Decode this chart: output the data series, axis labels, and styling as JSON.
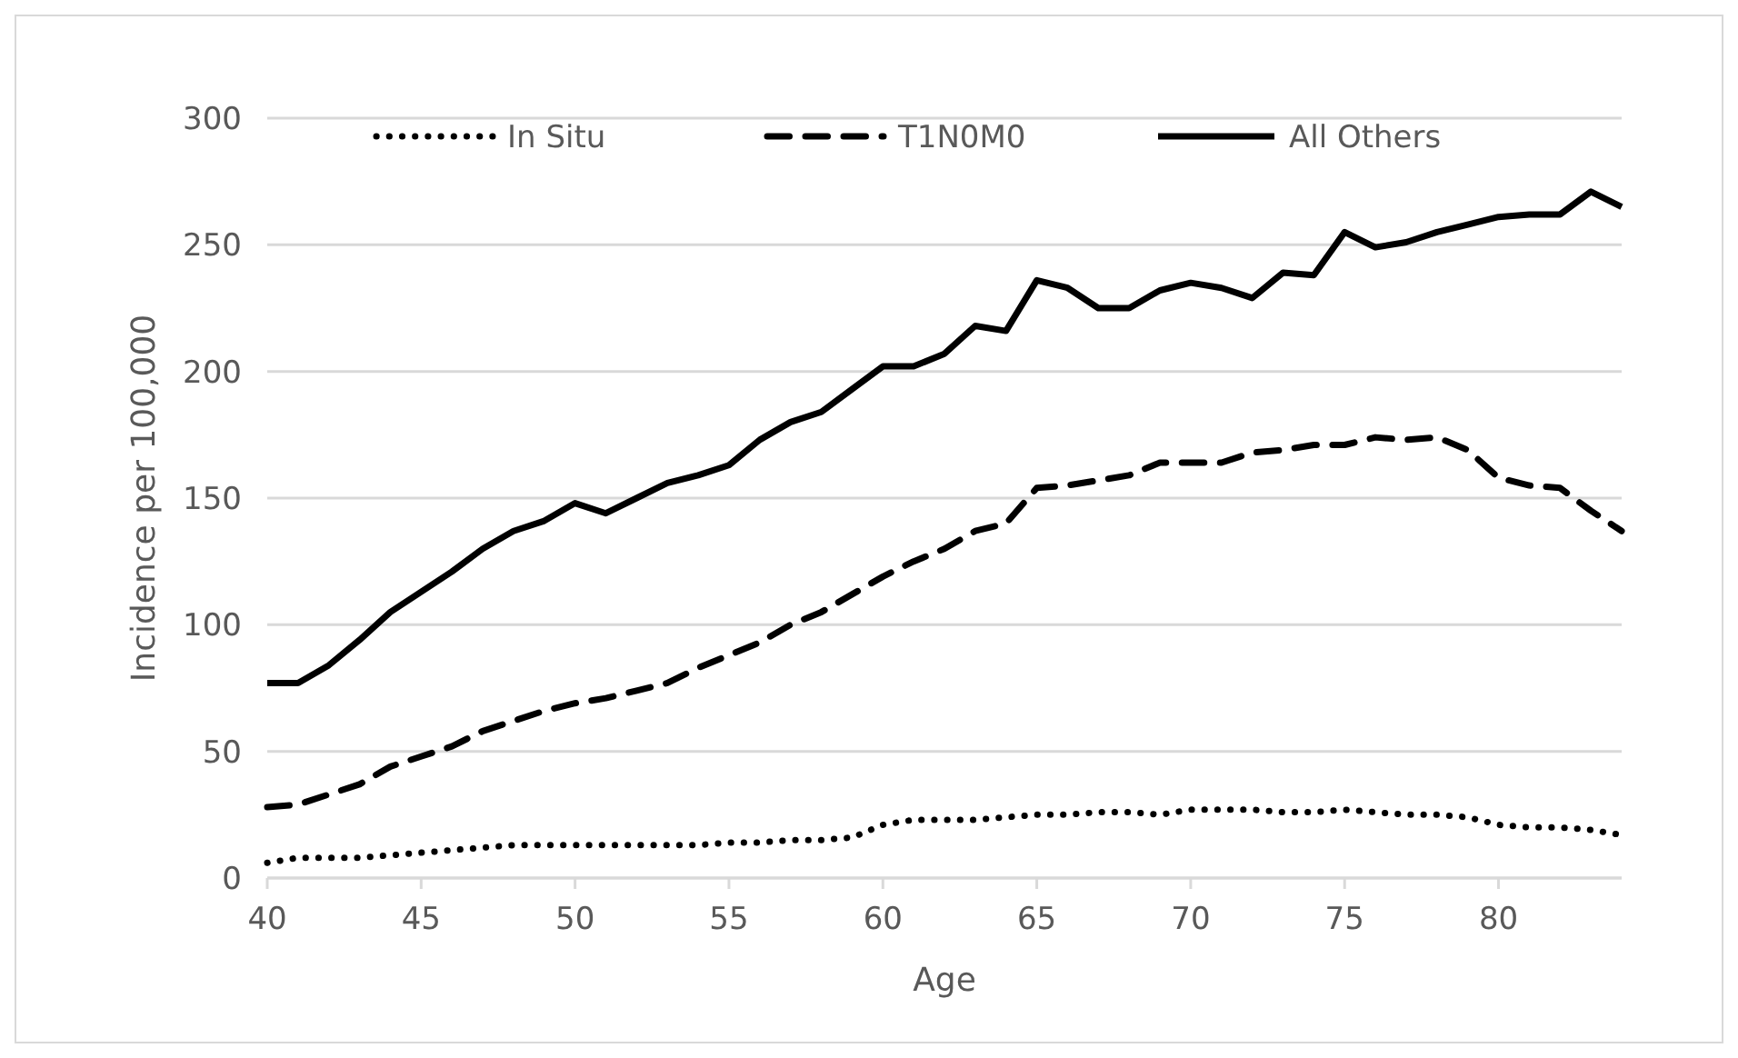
{
  "chart_data": {
    "type": "line",
    "xlabel": "Age",
    "ylabel": "Incidence per 100,000",
    "x": [
      40,
      41,
      42,
      43,
      44,
      45,
      46,
      47,
      48,
      49,
      50,
      51,
      52,
      53,
      54,
      55,
      56,
      57,
      58,
      59,
      60,
      61,
      62,
      63,
      64,
      65,
      66,
      67,
      68,
      69,
      70,
      71,
      72,
      73,
      74,
      75,
      76,
      77,
      78,
      79,
      80,
      81,
      82,
      83,
      84
    ],
    "series": [
      {
        "name": "In Situ",
        "color": "#000000",
        "line_style": "dotted",
        "values": [
          6,
          8,
          8,
          8,
          9,
          10,
          11,
          12,
          13,
          13,
          13,
          13,
          13,
          13,
          13,
          14,
          14,
          15,
          15,
          16,
          21,
          23,
          23,
          23,
          24,
          25,
          25,
          26,
          26,
          25,
          27,
          27,
          27,
          26,
          26,
          27,
          26,
          25,
          25,
          24,
          21,
          20,
          20,
          19,
          17
        ]
      },
      {
        "name": "T1N0M0",
        "color": "#000000",
        "line_style": "dashed",
        "values": [
          28,
          29,
          33,
          37,
          44,
          48,
          52,
          58,
          62,
          66,
          69,
          71,
          74,
          77,
          83,
          88,
          93,
          100,
          105,
          112,
          119,
          125,
          130,
          137,
          140,
          154,
          155,
          157,
          159,
          164,
          164,
          164,
          168,
          169,
          171,
          171,
          174,
          173,
          174,
          169,
          158,
          155,
          154,
          145,
          137
        ]
      },
      {
        "name": "All Others",
        "color": "#000000",
        "line_style": "solid",
        "values": [
          77,
          77,
          84,
          94,
          105,
          113,
          121,
          130,
          137,
          141,
          148,
          144,
          150,
          156,
          159,
          163,
          173,
          180,
          184,
          193,
          202,
          202,
          207,
          218,
          216,
          236,
          233,
          225,
          225,
          232,
          235,
          233,
          229,
          239,
          238,
          255,
          249,
          251,
          255,
          258,
          261,
          262,
          262,
          271,
          265
        ]
      }
    ],
    "xlim": [
      40,
      84
    ],
    "xticks": [
      40,
      45,
      50,
      55,
      60,
      65,
      70,
      75,
      80
    ],
    "ylim": [
      0,
      300
    ],
    "yticks": [
      0,
      50,
      100,
      150,
      200,
      250,
      300
    ],
    "grid": "y",
    "legend": "top",
    "marker": "none"
  }
}
